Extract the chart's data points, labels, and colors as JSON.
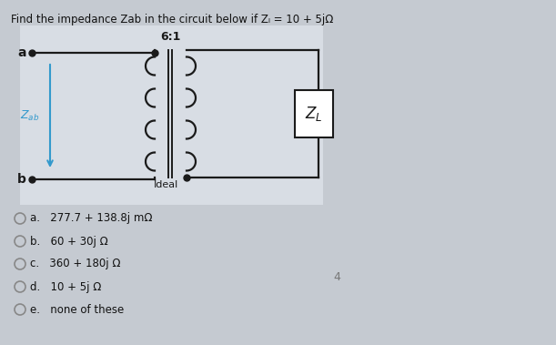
{
  "title": "Find the impedance Zab in the circuit below if Zₗ = 10 + 5jΩ",
  "bg_color": "#c5cad1",
  "circuit_bg": "#d8dde4",
  "choices": [
    "a.   277.7 + 138.8j mΩ",
    "b.   60 + 30j Ω",
    "c.   360 + 180j Ω",
    "d.   10 + 5j Ω",
    "e.   none of these"
  ],
  "transformer_ratio": "6:1",
  "ideal_label": "Ideal",
  "zl_label": "Z_L",
  "port_a": "a",
  "port_b": "b",
  "wire_color": "#1a1a1a",
  "zab_color": "#3399cc",
  "choice_circle_color": "#888888"
}
